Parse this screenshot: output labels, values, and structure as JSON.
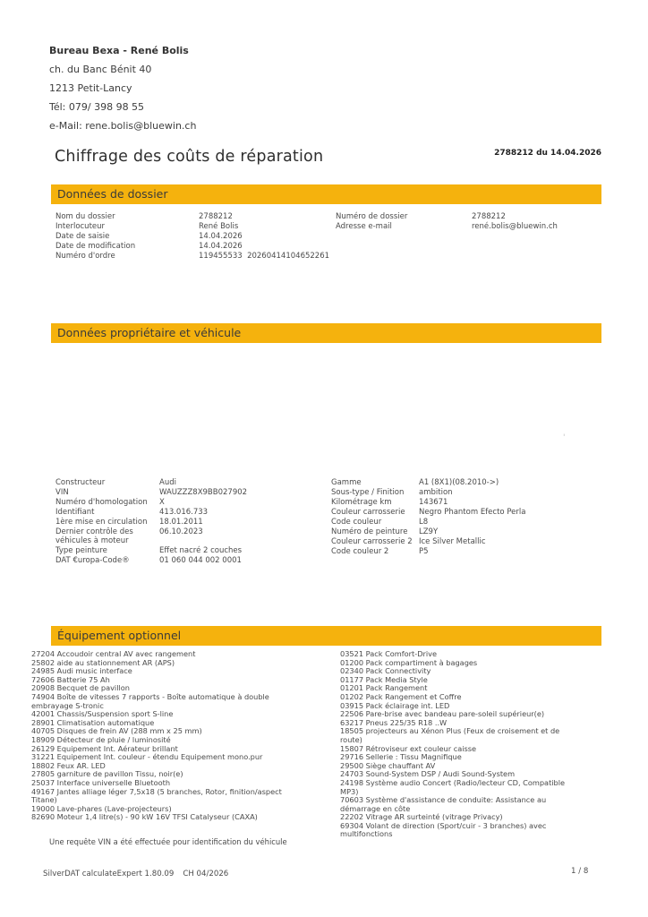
{
  "sender": {
    "name": "Bureau Bexa - René Bolis",
    "street": "ch. du Banc Bénit 40",
    "city": "1213 Petit-Lancy",
    "phone": "Tél: 079/ 398 98 55",
    "email": "e-Mail: rene.bolis@bluewin.ch"
  },
  "header": {
    "title": "Chiffrage des coûts de réparation",
    "reference": "2788212 du 14.04.2026"
  },
  "sections": {
    "dossier": {
      "title": "Données de dossier",
      "left": [
        {
          "label": "Nom du dossier",
          "value": "2788212"
        },
        {
          "label": "Interlocuteur",
          "value": "René Bolis"
        },
        {
          "label": "Date de saisie",
          "value": "14.04.2026"
        },
        {
          "label": "Date de modification",
          "value": "14.04.2026"
        },
        {
          "label": "Numéro d'ordre",
          "value": "119455533  20260414104652261"
        }
      ],
      "right": [
        {
          "label": "Numéro de dossier",
          "value": "2788212"
        },
        {
          "label": "Adresse e-mail",
          "value": "rené.bolis@bluewin.ch"
        }
      ]
    },
    "vehicle": {
      "title": "Données propriétaire et véhicule",
      "left": [
        {
          "label": "Constructeur",
          "value": "Audi"
        },
        {
          "label": "VIN",
          "value": "WAUZZZ8X9BB027902"
        },
        {
          "label": "Numéro d'homologation",
          "value": "X"
        },
        {
          "label": "Identifiant",
          "value": "413.016.733"
        },
        {
          "label": "1ère mise en circulation",
          "value": "18.01.2011"
        },
        {
          "label": "Dernier contrôle des véhicules à moteur",
          "value": "06.10.2023"
        },
        {
          "label": "Type peinture",
          "value": "Effet nacré 2 couches"
        },
        {
          "label": "DAT €uropa-Code®",
          "value": "01 060 044 002 0001"
        }
      ],
      "right": [
        {
          "label": "Gamme",
          "value": "A1 (8X1)(08.2010->)"
        },
        {
          "label": "Sous-type / Finition",
          "value": "ambition"
        },
        {
          "label": "Kilométrage km",
          "value": "143671"
        },
        {
          "label": "Couleur carrosserie",
          "value": "Negro Phantom Efecto Perla"
        },
        {
          "label": "Code couleur",
          "value": "L8"
        },
        {
          "label": "Numéro de peinture",
          "value": "LZ9Y"
        },
        {
          "label": "Couleur carrosserie 2",
          "value": "Ice Silver Metallic"
        },
        {
          "label": "Code couleur 2",
          "value": "P5"
        }
      ],
      "stray_mark": "'"
    },
    "equipment": {
      "title": "Équipement optionnel",
      "left": [
        "27204 Accoudoir central AV avec rangement",
        "25802 aide au stationnement AR (APS)",
        "24985 Audi music interface",
        "72606 Batterie 75 Ah",
        "20908 Becquet de pavillon",
        "74904 Boîte de vitesses 7 rapports - Boîte automatique à double embrayage S-tronic",
        "42001 Chassis/Suspension sport S-line",
        "28901 Climatisation automatique",
        "40705 Disques de frein AV (288 mm x 25 mm)",
        "18909 Détecteur de pluie / luminosité",
        "26129 Equipement Int. Aérateur brillant",
        "31221 Equipement Int. couleur - étendu Equipement mono.pur",
        "18802 Feux AR. LED",
        "27805 garniture de pavillon Tissu, noir(e)",
        "25037 Interface universelle Bluetooth",
        "49167 Jantes alliage léger 7,5x18 (5 branches, Rotor, finition/aspect Titane)",
        "19000 Lave-phares (Lave-projecteurs)",
        "82690 Moteur 1,4 litre(s) - 90 kW 16V TFSI Catalyseur (CAXA)"
      ],
      "right": [
        "03521 Pack Comfort-Drive",
        "01200 Pack compartiment à bagages",
        "02340 Pack Connectivity",
        "01177 Pack Media Style",
        "01201 Pack Rangement",
        "01202 Pack Rangement et Coffre",
        "03915 Pack éclairage int. LED",
        "22506 Pare-brise avec bandeau pare-soleil supérieur(e)",
        "63217 Pneus 225/35 R18 ..W",
        "18505 projecteurs au Xénon Plus (Feux de croisement et de route)",
        "15807 Rétroviseur ext couleur caisse",
        "29716 Sellerie : Tissu Magnifique",
        "29500 Siège chauffant AV",
        "24703 Sound-System DSP / Audi Sound-System",
        "24198 Système audio Concert (Radio/lecteur CD, Compatible MP3)",
        "70603 Système d'assistance de conduite: Assistance au démarrage en côte",
        "22202 Vitrage AR surteinté (vitrage Privacy)",
        "69304 Volant de direction (Sport/cuir - 3 branches) avec multifonctions"
      ]
    }
  },
  "notes": {
    "vin_note": "Une requête VIN a été effectuée pour identification du véhicule"
  },
  "footer": {
    "app_version": "SilverDAT calculateExpert 1.80.09",
    "country_version": "CH 04/2026",
    "page_number": "1 / 8"
  },
  "colors": {
    "accent": "#f5b20d",
    "text": "#4a4a4a",
    "background": "#ffffff"
  }
}
